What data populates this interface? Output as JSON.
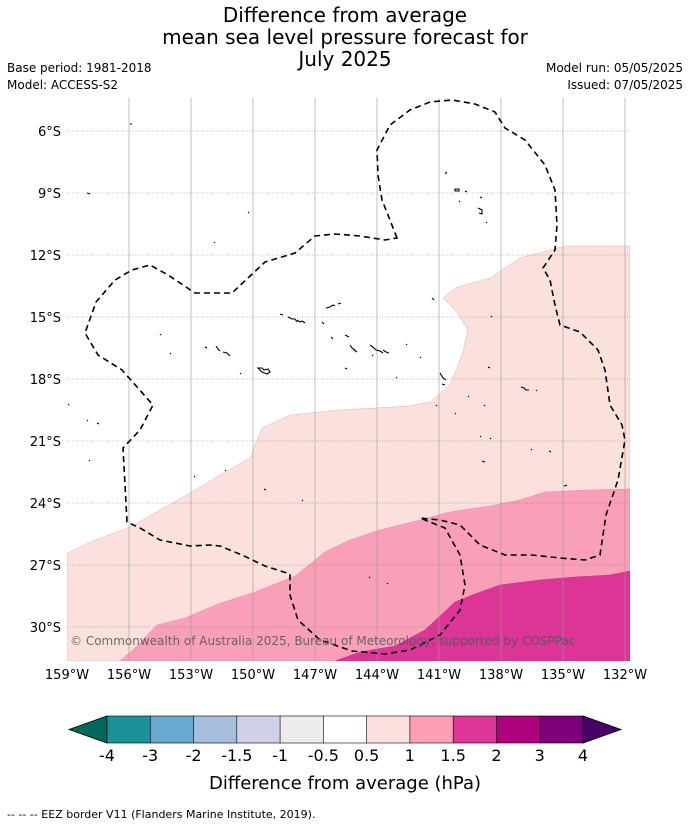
{
  "title": {
    "line1": "Difference from average",
    "line2": "mean sea level pressure forecast for",
    "line3": "July 2025"
  },
  "meta": {
    "base_period": "Base period: 1981-2018",
    "model": "Model: ACCESS-S2",
    "model_run": "Model run: 05/05/2025",
    "issued": "Issued: 07/05/2025"
  },
  "map": {
    "lat_labels": [
      "6°S",
      "9°S",
      "12°S",
      "15°S",
      "18°S",
      "21°S",
      "24°S",
      "27°S",
      "30°S"
    ],
    "lon_labels": [
      "159°W",
      "156°W",
      "153°W",
      "150°W",
      "147°W",
      "144°W",
      "141°W",
      "138°W",
      "135°W",
      "132°W"
    ],
    "copyright": "© Commonwealth of Australia 2025, Bureau of Meteorology, supported by COSPPac",
    "border_style": "dashed",
    "colors": {
      "band_0_5_1": "#fce0dd",
      "band_1_1_5": "#f9a0b8",
      "band_1_5_2": "#dd3497",
      "land": "#000000"
    }
  },
  "colorbar": {
    "title": "Difference from average (hPa)",
    "tick_labels": [
      "-4",
      "-3",
      "-2",
      "-1.5",
      "-1",
      "-0.5",
      "0.5",
      "1",
      "1.5",
      "2",
      "3",
      "4"
    ],
    "under_color": "#00695c",
    "over_color": "#49006a",
    "colors": [
      "#1b9297",
      "#67a9cf",
      "#a6bddb",
      "#d0d1e6",
      "#ececec",
      "#ffffff",
      "#fde0dd",
      "#fa9fb5",
      "#dd3497",
      "#ae017e",
      "#7a0177"
    ]
  },
  "footer": "--  --  -- EEZ border V11 (Flanders Marine Institute, 2019)."
}
